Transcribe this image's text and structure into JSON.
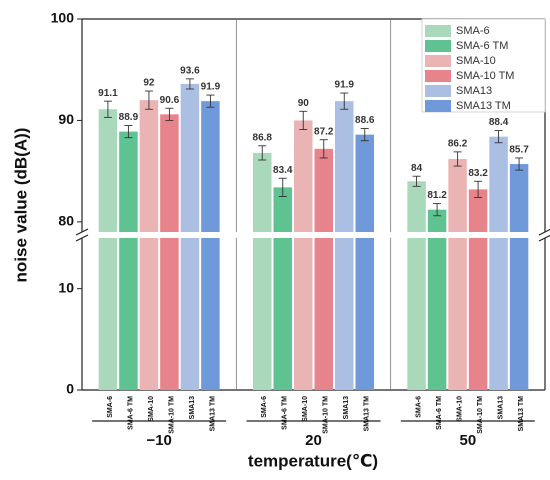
{
  "chart_data": {
    "type": "bar",
    "y_label": "noise value (dB(A))",
    "x_label": "temperature(℃)",
    "categories": [
      "−10",
      "20",
      "50"
    ],
    "series": [
      {
        "name": "SMA-6",
        "color": "#a9d8bb",
        "values": [
          91.1,
          86.8,
          84
        ],
        "errors": [
          0.8,
          0.7,
          0.5
        ]
      },
      {
        "name": "SMA-6 TM",
        "color": "#5fc291",
        "values": [
          88.9,
          83.4,
          81.2
        ],
        "errors": [
          0.6,
          0.9,
          0.6
        ]
      },
      {
        "name": "SMA-10",
        "color": "#eab3b4",
        "values": [
          92,
          90,
          86.2
        ],
        "errors": [
          0.9,
          0.9,
          0.7
        ]
      },
      {
        "name": "SMA-10 TM",
        "color": "#e7838a",
        "values": [
          90.6,
          87.2,
          83.2
        ],
        "errors": [
          0.6,
          0.9,
          0.8
        ]
      },
      {
        "name": "SMA13",
        "color": "#aabfe2",
        "values": [
          93.6,
          91.9,
          88.4
        ],
        "errors": [
          0.5,
          0.8,
          0.6
        ]
      },
      {
        "name": "SMA13 TM",
        "color": "#7099da",
        "values": [
          91.9,
          88.6,
          85.7
        ],
        "errors": [
          0.6,
          0.6,
          0.6
        ]
      }
    ],
    "ylim": [
      0,
      100
    ],
    "ybreak": [
      15,
      79
    ],
    "yticks": [
      0,
      10,
      80,
      90,
      100
    ],
    "legend": "upper right"
  }
}
